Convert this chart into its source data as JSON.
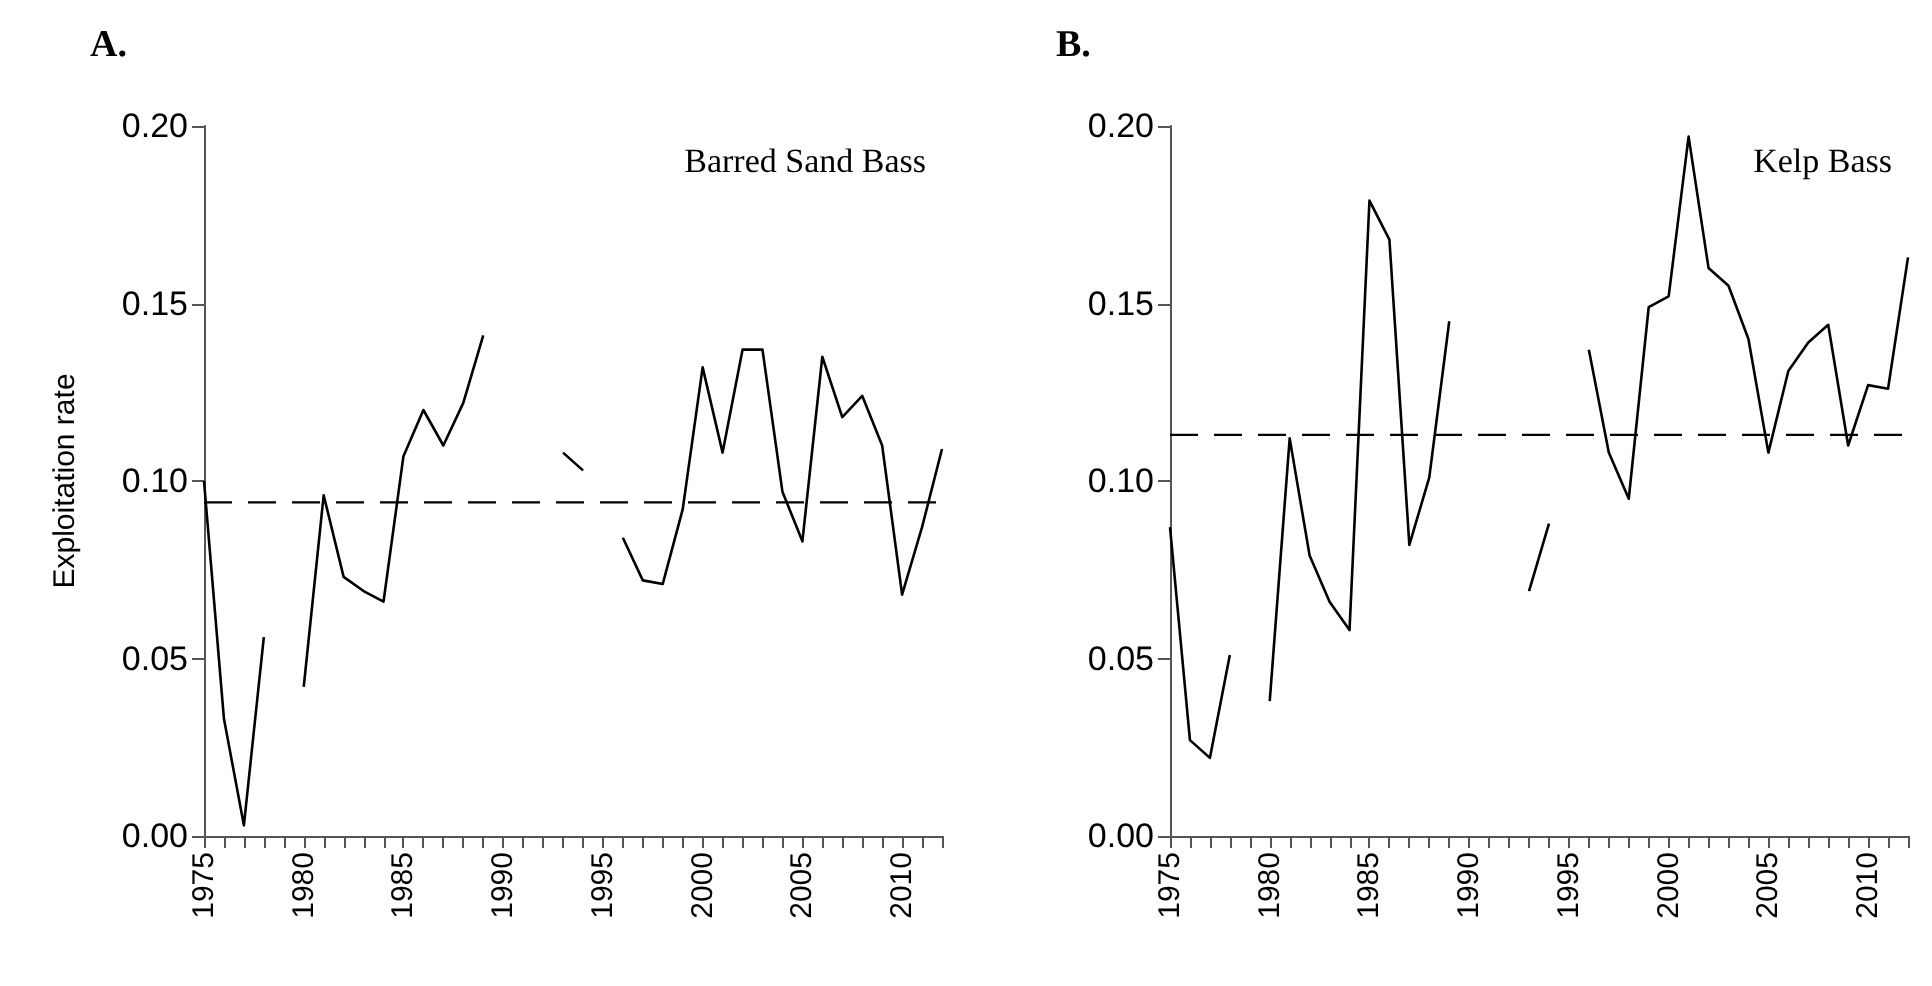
{
  "chart_data": [
    {
      "type": "line",
      "title": "A.",
      "ylabel": "Exploitation rate",
      "annotations": [
        "Barred Sand Bass"
      ],
      "x": [
        1975,
        1976,
        1977,
        1978,
        1979,
        1980,
        1981,
        1982,
        1983,
        1984,
        1985,
        1986,
        1987,
        1988,
        1989,
        1990,
        1991,
        1992,
        1993,
        1994,
        1995,
        1996,
        1997,
        1998,
        1999,
        2000,
        2001,
        2002,
        2003,
        2004,
        2005,
        2006,
        2007,
        2008,
        2009,
        2010,
        2011,
        2012
      ],
      "series": [
        {
          "color": "#000000",
          "values": [
            0.1,
            0.033,
            0.003,
            0.056,
            null,
            0.042,
            0.096,
            0.073,
            0.069,
            0.066,
            0.107,
            0.12,
            0.11,
            0.122,
            0.141,
            null,
            null,
            null,
            0.108,
            0.103,
            null,
            0.084,
            0.072,
            0.071,
            0.092,
            0.132,
            0.108,
            0.137,
            0.137,
            0.097,
            0.083,
            0.135,
            0.118,
            0.124,
            0.11,
            0.068,
            0.087,
            0.109
          ]
        }
      ],
      "ref_lines": [
        {
          "axis": "y",
          "value": 0.094,
          "label": null,
          "color": "#000000",
          "line_style": "dashed"
        }
      ],
      "xlim": [
        1975,
        2012
      ],
      "xticks": [
        1975,
        {
          "value": 1976,
          "label": null
        },
        {
          "value": 1977,
          "label": null
        },
        {
          "value": 1978,
          "label": null
        },
        {
          "value": 1979,
          "label": null
        },
        1980,
        {
          "value": 1981,
          "label": null
        },
        {
          "value": 1982,
          "label": null
        },
        {
          "value": 1983,
          "label": null
        },
        {
          "value": 1984,
          "label": null
        },
        1985,
        {
          "value": 1986,
          "label": null
        },
        {
          "value": 1987,
          "label": null
        },
        {
          "value": 1988,
          "label": null
        },
        {
          "value": 1989,
          "label": null
        },
        1990,
        {
          "value": 1991,
          "label": null
        },
        {
          "value": 1992,
          "label": null
        },
        {
          "value": 1993,
          "label": null
        },
        {
          "value": 1994,
          "label": null
        },
        1995,
        {
          "value": 1996,
          "label": null
        },
        {
          "value": 1997,
          "label": null
        },
        {
          "value": 1998,
          "label": null
        },
        {
          "value": 1999,
          "label": null
        },
        2000,
        {
          "value": 2001,
          "label": null
        },
        {
          "value": 2002,
          "label": null
        },
        {
          "value": 2003,
          "label": null
        },
        {
          "value": 2004,
          "label": null
        },
        2005,
        {
          "value": 2006,
          "label": null
        },
        {
          "value": 2007,
          "label": null
        },
        {
          "value": 2008,
          "label": null
        },
        {
          "value": 2009,
          "label": null
        },
        2010,
        {
          "value": 2011,
          "label": null
        },
        {
          "value": 2012,
          "label": null
        }
      ],
      "ylim": [
        0,
        0.2
      ],
      "yticks": [
        {
          "value": 0,
          "label": "0.00"
        },
        {
          "value": 0.05,
          "label": "0.05"
        },
        {
          "value": 0.1,
          "label": "0.10"
        },
        {
          "value": 0.15,
          "label": "0.15"
        },
        {
          "value": 0.2,
          "label": "0.20"
        }
      ],
      "grid": false,
      "marker": "none",
      "line_style": "solid"
    },
    {
      "type": "line",
      "title": "B.",
      "annotations": [
        "Kelp Bass"
      ],
      "x": [
        1975,
        1976,
        1977,
        1978,
        1979,
        1980,
        1981,
        1982,
        1983,
        1984,
        1985,
        1986,
        1987,
        1988,
        1989,
        1990,
        1991,
        1992,
        1993,
        1994,
        1995,
        1996,
        1997,
        1998,
        1999,
        2000,
        2001,
        2002,
        2003,
        2004,
        2005,
        2006,
        2007,
        2008,
        2009,
        2010,
        2011,
        2012
      ],
      "series": [
        {
          "color": "#000000",
          "values": [
            0.087,
            0.027,
            0.022,
            0.051,
            null,
            0.038,
            0.112,
            0.079,
            0.066,
            0.058,
            0.179,
            0.168,
            0.082,
            0.101,
            0.145,
            null,
            null,
            null,
            0.069,
            0.088,
            null,
            0.137,
            0.108,
            0.095,
            0.149,
            0.152,
            0.197,
            0.16,
            0.155,
            0.14,
            0.108,
            0.131,
            0.139,
            0.144,
            0.11,
            0.127,
            0.126,
            0.163
          ]
        }
      ],
      "ref_lines": [
        {
          "axis": "y",
          "value": 0.113,
          "label": null,
          "color": "#000000",
          "line_style": "dashed"
        }
      ],
      "xlim": [
        1975,
        2012
      ],
      "xticks": [
        1975,
        {
          "value": 1976,
          "label": null
        },
        {
          "value": 1977,
          "label": null
        },
        {
          "value": 1978,
          "label": null
        },
        {
          "value": 1979,
          "label": null
        },
        1980,
        {
          "value": 1981,
          "label": null
        },
        {
          "value": 1982,
          "label": null
        },
        {
          "value": 1983,
          "label": null
        },
        {
          "value": 1984,
          "label": null
        },
        1985,
        {
          "value": 1986,
          "label": null
        },
        {
          "value": 1987,
          "label": null
        },
        {
          "value": 1988,
          "label": null
        },
        {
          "value": 1989,
          "label": null
        },
        1990,
        {
          "value": 1991,
          "label": null
        },
        {
          "value": 1992,
          "label": null
        },
        {
          "value": 1993,
          "label": null
        },
        {
          "value": 1994,
          "label": null
        },
        1995,
        {
          "value": 1996,
          "label": null
        },
        {
          "value": 1997,
          "label": null
        },
        {
          "value": 1998,
          "label": null
        },
        {
          "value": 1999,
          "label": null
        },
        2000,
        {
          "value": 2001,
          "label": null
        },
        {
          "value": 2002,
          "label": null
        },
        {
          "value": 2003,
          "label": null
        },
        {
          "value": 2004,
          "label": null
        },
        2005,
        {
          "value": 2006,
          "label": null
        },
        {
          "value": 2007,
          "label": null
        },
        {
          "value": 2008,
          "label": null
        },
        {
          "value": 2009,
          "label": null
        },
        2010,
        {
          "value": 2011,
          "label": null
        },
        {
          "value": 2012,
          "label": null
        }
      ],
      "ylim": [
        0,
        0.2
      ],
      "yticks": [
        {
          "value": 0,
          "label": "0.00"
        },
        {
          "value": 0.05,
          "label": "0.05"
        },
        {
          "value": 0.1,
          "label": "0.10"
        },
        {
          "value": 0.15,
          "label": "0.15"
        },
        {
          "value": 0.2,
          "label": "0.20"
        }
      ],
      "grid": false,
      "marker": "none",
      "line_style": "solid"
    }
  ]
}
